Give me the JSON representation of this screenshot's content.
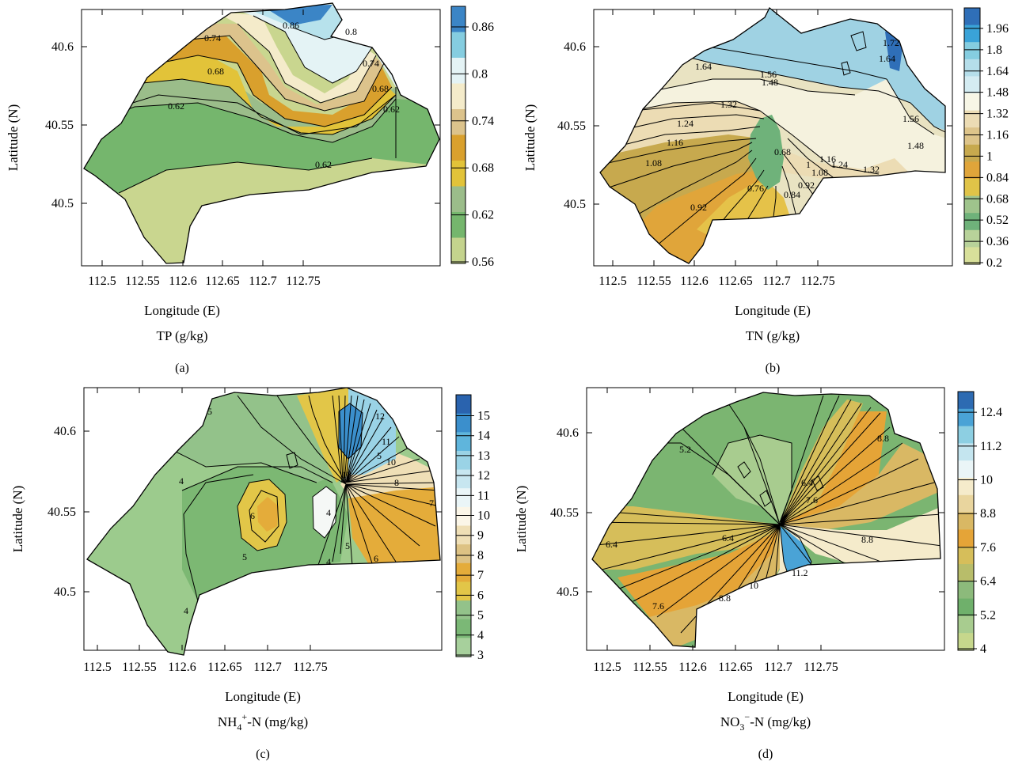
{
  "figure": {
    "panels": [
      {
        "id": "a",
        "panel_label": "(a)",
        "quantity_label": "TP (g/kg)",
        "xlabel": "Longitude (E)",
        "ylabel": "Latitude (N)",
        "x_ticks": [
          "112.5",
          "112.55",
          "112.6",
          "112.65",
          "112.7",
          "112.75"
        ],
        "y_ticks": [
          "40.5",
          "40.55",
          "40.6"
        ],
        "colorbar_ticks": [
          "0.86",
          "0.8",
          "0.74",
          "0.68",
          "0.62",
          "0.56"
        ],
        "colorbar_colors": [
          "#3b85c6",
          "#85cde0",
          "#e4f3f5",
          "#f4ebca",
          "#dcc38c",
          "#d9a02d",
          "#e2c339",
          "#9bbd8a",
          "#75b66d",
          "#c4d38d"
        ],
        "contour_labels": [
          "0.86",
          "0.8",
          "0.74",
          "0.74",
          "0.68",
          "0.68",
          "0.62",
          "0.62",
          "0.62"
        ],
        "colors": {
          "region": "#c9d68f",
          "low": "#75b66d",
          "mid": "#9bbd8a",
          "yellow": "#e2c339",
          "orange": "#d9a02d",
          "tan": "#dcc38c",
          "cream": "#f4ebca",
          "white": "#e4f3f5",
          "light": "#b7e2ec",
          "blue": "#3b85c6"
        }
      },
      {
        "id": "b",
        "panel_label": "(b)",
        "quantity_label": "TN (g/kg)",
        "xlabel": "Longitude (E)",
        "ylabel": "Latitude (N)",
        "x_ticks": [
          "112.5",
          "112.55",
          "112.6",
          "112.65",
          "112.7",
          "112.75"
        ],
        "y_ticks": [
          "40.5",
          "40.55",
          "40.6"
        ],
        "colorbar_ticks": [
          "1.96",
          "1.8",
          "1.64",
          "1.48",
          "1.32",
          "1.16",
          "1",
          "0.84",
          "0.68",
          "0.52",
          "0.36",
          "0.2"
        ],
        "colorbar_colors": [
          "#2f6fb8",
          "#3aa3d8",
          "#85cde0",
          "#b5deea",
          "#d4ecf2",
          "#f7f6e6",
          "#ecdcb4",
          "#ddc48a",
          "#c7a94e",
          "#e0a53a",
          "#e0c448",
          "#9fc48c",
          "#6fb27a",
          "#b8d29a",
          "#d8e09a"
        ],
        "contour_labels": [
          "1.72",
          "1.64",
          "1.64",
          "1.56",
          "1.56",
          "1.48",
          "1.48",
          "1.32",
          "1.32",
          "1.24",
          "1.24",
          "1.16",
          "1.16",
          "1.08",
          "1.08",
          "1",
          "0.92",
          "0.92",
          "0.84",
          "0.76",
          "0.68"
        ],
        "colors": {
          "region": "#e9e3c2",
          "blue": "#9fd2e3",
          "dark": "#2f6fb8",
          "green": "#6fb27a",
          "orange": "#e0a53a",
          "olive": "#c7a94e",
          "yellow": "#e5c249",
          "pale": "#f5f2de",
          "cream": "#ecdcb4"
        }
      },
      {
        "id": "c",
        "panel_label": "(c)",
        "quantity_label": "NH",
        "quantity_sup": "4",
        "quantity_sub_sup": "+",
        "quantity_tail": "-N (mg/kg)",
        "xlabel": "Longitude (E)",
        "ylabel": "Latitude (N)",
        "x_ticks": [
          "112.5",
          "112.55",
          "112.6",
          "112.65",
          "112.7",
          "112.75"
        ],
        "y_ticks": [
          "40.5",
          "40.55",
          "40.6"
        ],
        "colorbar_ticks": [
          "15",
          "14",
          "13",
          "12",
          "11",
          "10",
          "9",
          "8",
          "7",
          "6",
          "5",
          "4",
          "3"
        ],
        "colorbar_colors": [
          "#2a63ae",
          "#3b8fcc",
          "#5fb5dc",
          "#9ad3e6",
          "#c7e6f0",
          "#eaf5f7",
          "#fbf6e8",
          "#efdfb6",
          "#ddc284",
          "#e4ac3a",
          "#e2c648",
          "#93c28a",
          "#7bb876",
          "#a7d09c"
        ],
        "contour_labels": [
          "5",
          "4",
          "4",
          "6",
          "5",
          "4",
          "4",
          "5",
          "5",
          "6",
          "7",
          "8",
          "10",
          "11",
          "12",
          "13"
        ],
        "colors": {
          "region": "#9ccb8d",
          "green": "#7cb873",
          "mid": "#93c28a",
          "yellow": "#e2c648",
          "orange": "#e4ac3a",
          "blue": "#3b8fcc",
          "light": "#9ad3e6",
          "white": "#f5f8f6",
          "cream": "#efdfb6"
        }
      },
      {
        "id": "d",
        "panel_label": "(d)",
        "quantity_label": "NO",
        "quantity_sup": "3",
        "quantity_sub_sup": "−",
        "quantity_tail": "-N (mg/kg)",
        "xlabel": "Longitude (E)",
        "ylabel": "Latitude (N)",
        "x_ticks": [
          "112.5",
          "112.55",
          "112.6",
          "112.65",
          "112.7",
          "112.75"
        ],
        "y_ticks": [
          "40.5",
          "40.55",
          "40.6"
        ],
        "colorbar_ticks": [
          "12.4",
          "11.2",
          "10",
          "8.8",
          "7.6",
          "6.4",
          "5.2",
          "4"
        ],
        "colorbar_colors": [
          "#2d6bb2",
          "#4aa3d6",
          "#8dcfe2",
          "#c4e5ef",
          "#eaf5f7",
          "#f5ebcb",
          "#e9d59e",
          "#d9b864",
          "#e5a437",
          "#d6be5a",
          "#b8bd6a",
          "#8cba7b",
          "#6fb06b",
          "#a8cc8f",
          "#c6d78c"
        ],
        "contour_labels": [
          "5.2",
          "6.4",
          "6.4",
          "6.4",
          "7.6",
          "7.6",
          "8.8",
          "8.8",
          "8.8",
          "10",
          "11.2"
        ],
        "colors": {
          "region": "#7bb571",
          "green": "#6fb06b",
          "pale": "#a8cc8f",
          "yellow": "#d6be5a",
          "orange": "#e5a437",
          "tan": "#d9b864",
          "cream": "#f5ebcb",
          "white": "#eaf5f7",
          "blue": "#4aa3d6",
          "dark": "#2d6bb2"
        }
      }
    ]
  }
}
